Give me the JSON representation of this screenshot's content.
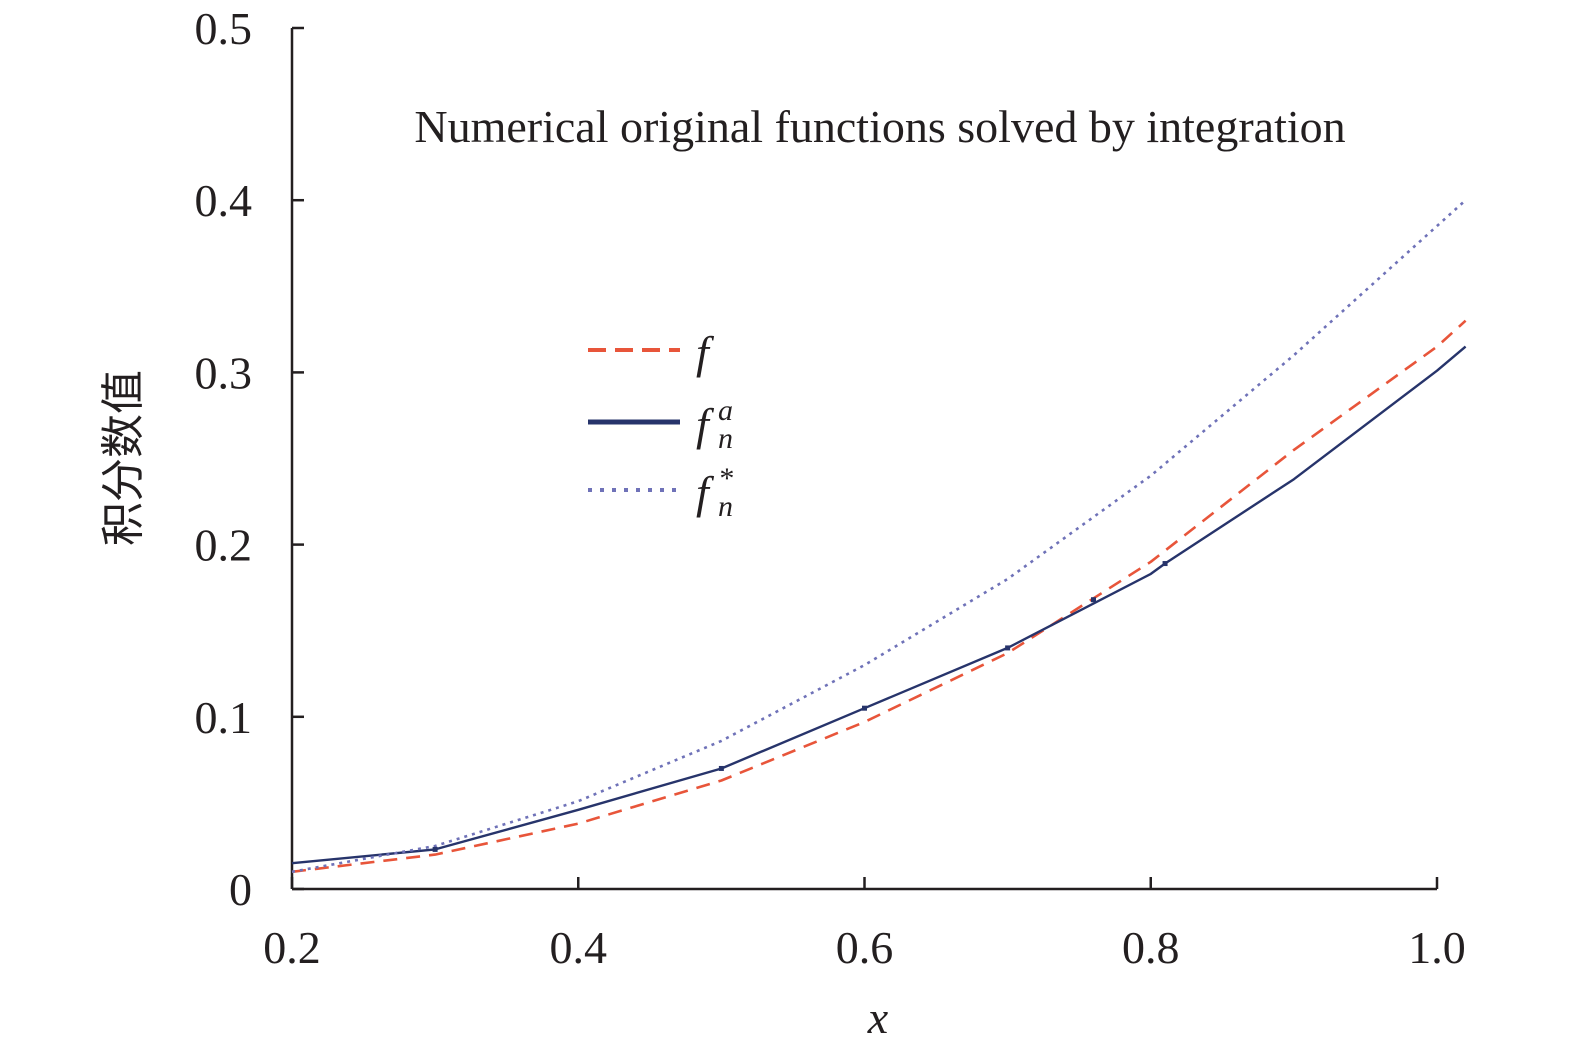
{
  "chart_data": {
    "type": "line",
    "title": "Numerical original functions solved by integration",
    "xlabel": "x",
    "ylabel": "积分数值",
    "xlim": [
      0.2,
      1.0
    ],
    "ylim": [
      0,
      0.5
    ],
    "x_ticks": [
      0.2,
      0.4,
      0.6,
      0.8,
      1.0
    ],
    "x_tick_labels": [
      "0.2",
      "0.4",
      "0.6",
      "0.8",
      "1.0"
    ],
    "y_ticks": [
      0,
      0.1,
      0.2,
      0.3,
      0.4,
      0.5
    ],
    "y_tick_labels": [
      "0",
      "0.1",
      "0.2",
      "0.3",
      "0.4",
      "0.5"
    ],
    "grid": false,
    "legend_position": "center-left",
    "series": [
      {
        "name": "f",
        "name_sub": "",
        "name_sup": "",
        "color": "#e8553a",
        "style": "dashed",
        "x": [
          0.2,
          0.3,
          0.4,
          0.5,
          0.6,
          0.7,
          0.8,
          0.9,
          1.0,
          1.02
        ],
        "y": [
          0.01,
          0.02,
          0.038,
          0.063,
          0.097,
          0.137,
          0.19,
          0.255,
          0.315,
          0.33
        ]
      },
      {
        "name": "f",
        "name_sub": "n",
        "name_sup": "a",
        "color": "#27346b",
        "style": "solid",
        "x": [
          0.2,
          0.3,
          0.4,
          0.5,
          0.6,
          0.7,
          0.8,
          0.81,
          0.9,
          1.0,
          1.02
        ],
        "y": [
          0.015,
          0.023,
          0.046,
          0.07,
          0.105,
          0.14,
          0.183,
          0.189,
          0.238,
          0.301,
          0.315
        ]
      },
      {
        "name": "f",
        "name_sub": "n",
        "name_sup": "*",
        "color": "#6f72b8",
        "style": "dotted",
        "x": [
          0.2,
          0.3,
          0.4,
          0.5,
          0.6,
          0.7,
          0.8,
          0.9,
          1.0,
          1.02
        ],
        "y": [
          0.01,
          0.025,
          0.051,
          0.086,
          0.13,
          0.18,
          0.24,
          0.31,
          0.385,
          0.4
        ]
      }
    ],
    "markers": {
      "series_index": 1,
      "x": [
        0.3,
        0.5,
        0.6,
        0.7,
        0.76,
        0.81
      ],
      "y": [
        0.023,
        0.07,
        0.105,
        0.14,
        0.168,
        0.189
      ]
    }
  }
}
